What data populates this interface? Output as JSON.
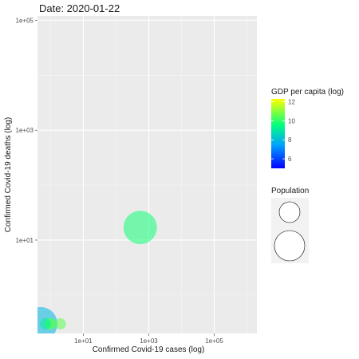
{
  "chart_data": {
    "type": "scatter",
    "title": "Date: 2020-01-22",
    "xlabel": "Confirmed Covid-19 cases (log)",
    "ylabel": "Confirmed Covid-19 deaths (log)",
    "x_scale": "log10",
    "y_scale": "log10",
    "xlim": [
      0.4,
      2000000
    ],
    "ylim": [
      0.2,
      120000
    ],
    "x_ticks": [
      {
        "value": 10,
        "label": "1e+01"
      },
      {
        "value": 1000,
        "label": "1e+03"
      },
      {
        "value": 100000,
        "label": "1e+05"
      }
    ],
    "y_ticks": [
      {
        "value": 10,
        "label": "1e+01"
      },
      {
        "value": 1000,
        "label": "1e+03"
      },
      {
        "value": 100000,
        "label": "1e+05"
      }
    ],
    "grid": true,
    "points": [
      {
        "cases": 548,
        "deaths": 17,
        "gdp_log": 9.7,
        "population_rank": "large"
      },
      {
        "cases": 0.5,
        "deaths": 0.3,
        "gdp_log": 7.9,
        "population_rank": "large"
      },
      {
        "cases": 1,
        "deaths": 0.3,
        "gdp_log": 10.8,
        "population_rank": "small"
      },
      {
        "cases": 1,
        "deaths": 0.3,
        "gdp_log": 10.2,
        "population_rank": "small"
      },
      {
        "cases": 2,
        "deaths": 0.3,
        "gdp_log": 10.5,
        "population_rank": "small"
      },
      {
        "cases": 0.7,
        "deaths": 0.3,
        "gdp_log": 9.2,
        "population_rank": "small"
      }
    ],
    "legend": {
      "position": "right",
      "color": {
        "title": "GDP per capita (log)",
        "labels": [
          "12",
          "10",
          "8",
          "6"
        ],
        "range": [
          5,
          12.3
        ],
        "palette": [
          "#0000ff",
          "#00a0ff",
          "#00ff80",
          "#ffff00"
        ]
      },
      "size": {
        "title": "Population"
      }
    }
  }
}
